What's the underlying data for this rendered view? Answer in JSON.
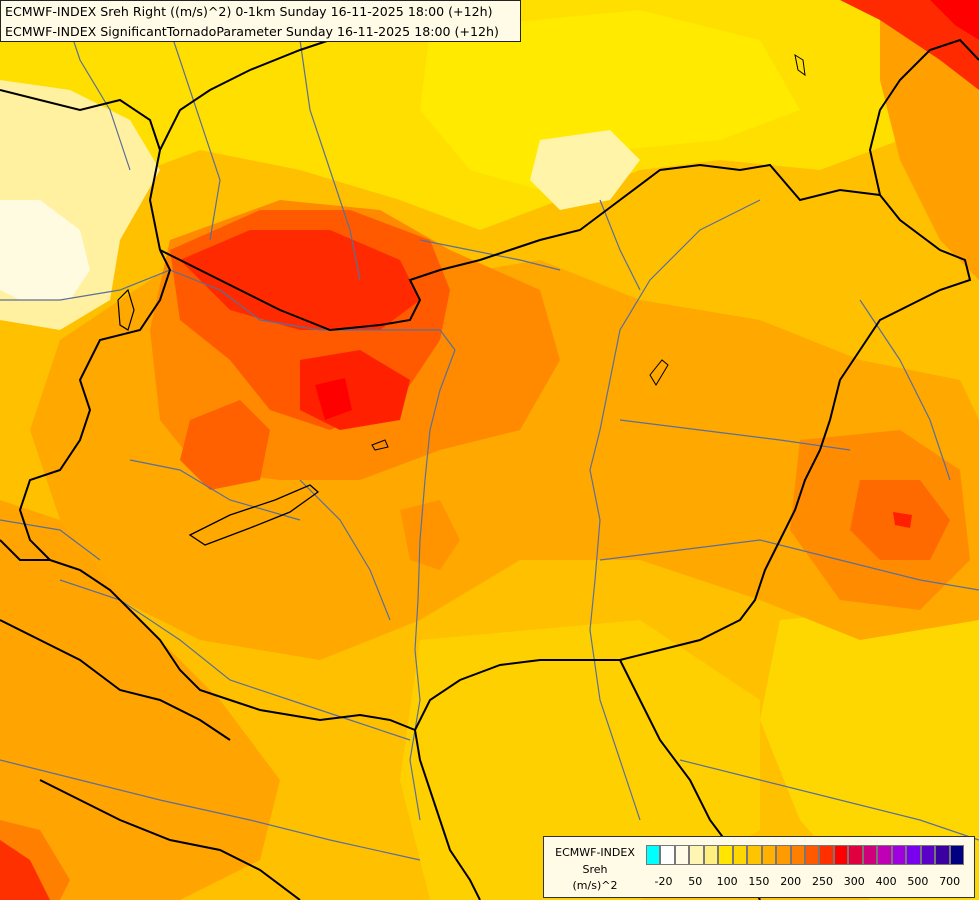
{
  "header": {
    "line1": "ECMWF-INDEX Sreh Right ((m/s)^2) 0-1km Sunday 16-11-2025 18:00 (+12h)",
    "line2": "ECMWF-INDEX SignificantTornadoParameter Sunday 16-11-2025 18:00 (+12h)"
  },
  "legend": {
    "title": "ECMWF-INDEX",
    "variable": "Sreh",
    "unit": "(m/s)^2",
    "colors": [
      "#00ffff",
      "#ffffff",
      "#fffbe6",
      "#fff5b3",
      "#ffee80",
      "#ffe500",
      "#ffd700",
      "#ffc400",
      "#ffb000",
      "#ff9a00",
      "#ff7f00",
      "#ff5a00",
      "#ff2f00",
      "#ff0000",
      "#e00040",
      "#d0007a",
      "#c000b4",
      "#a000e0",
      "#7a00f0",
      "#5a00c8",
      "#3a00a0",
      "#000080"
    ],
    "ticks": [
      "-20",
      "50",
      "100",
      "150",
      "200",
      "250",
      "300",
      "400",
      "500",
      "700"
    ]
  },
  "map": {
    "palette": {
      "sea_ocean": "#ffcc00",
      "low": "#fff3a8",
      "yellow": "#ffe500",
      "gold": "#ffcc00",
      "amber": "#ffb300",
      "orange": "#ff9200",
      "dark_orange": "#ff6a00",
      "red_orange": "#ff4000",
      "red": "#ff1a00",
      "border": "#000000",
      "river": "#5a6f9a"
    }
  }
}
